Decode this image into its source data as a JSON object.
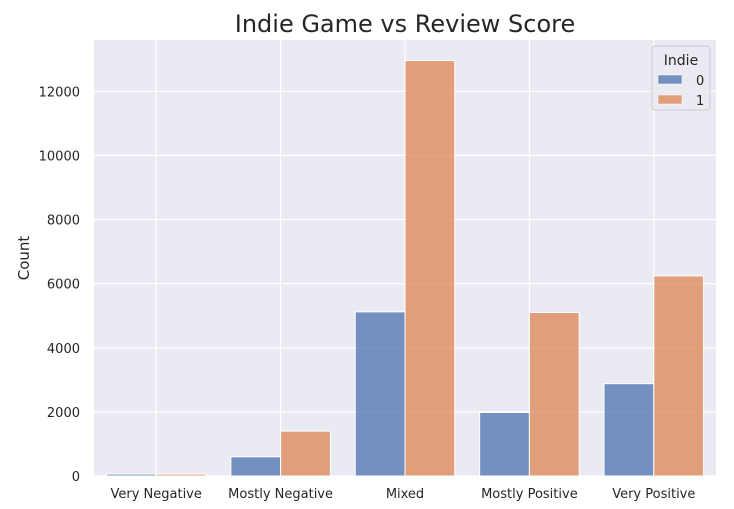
{
  "chart_data": {
    "type": "bar",
    "title": "Indie Game vs Review Score",
    "xlabel": "",
    "ylabel": "Count",
    "categories": [
      "Very Negative",
      "Mostly Negative",
      "Mixed",
      "Mostly Positive",
      "Very Positive"
    ],
    "series": [
      {
        "name": "0",
        "values": [
          60,
          600,
          5120,
          1980,
          2880
        ],
        "color": "#4c72b0"
      },
      {
        "name": "1",
        "values": [
          60,
          1400,
          12960,
          5100,
          6240
        ],
        "color": "#dd8452"
      }
    ],
    "ylim": [
      0,
      13600
    ],
    "yticks": [
      0,
      2000,
      4000,
      6000,
      8000,
      10000,
      12000
    ],
    "grid": true,
    "legend": {
      "title": "Indie",
      "placement": "top-right"
    },
    "background_color": "#eaeaf2",
    "grid_color": "#ffffff"
  }
}
